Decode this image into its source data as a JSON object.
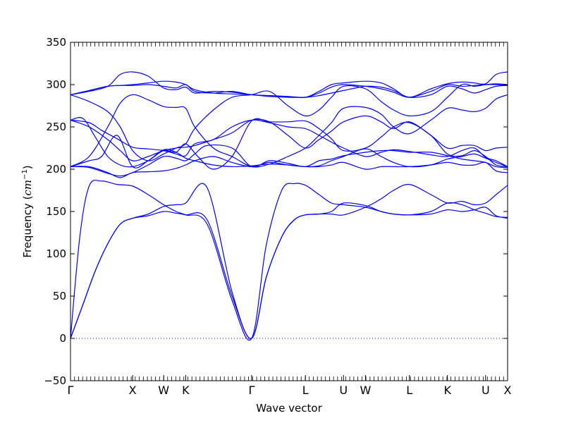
{
  "chart_data": {
    "type": "line",
    "title": "",
    "xlabel": "Wave vector",
    "ylabel_text": "Frequency (",
    "ylabel_unit_base": "cm",
    "ylabel_unit_exp": "−1",
    "ylabel_close": ")",
    "ylim": [
      -50,
      350
    ],
    "yticks": [
      -50,
      0,
      50,
      100,
      150,
      200,
      250,
      300,
      350
    ],
    "grid": false,
    "line_color": "#0000ff",
    "zero_line_style": "dotted",
    "xticks": [
      {
        "label": "Γ",
        "pos": 0.0
      },
      {
        "label": "X",
        "pos": 1.0
      },
      {
        "label": "W",
        "pos": 1.5
      },
      {
        "label": "K",
        "pos": 1.854
      },
      {
        "label": "Γ",
        "pos": 2.915
      },
      {
        "label": "L",
        "pos": 3.781
      },
      {
        "label": "U",
        "pos": 4.394
      },
      {
        "label": "W",
        "pos": 4.748
      },
      {
        "label": "L",
        "pos": 5.455
      },
      {
        "label": "K",
        "pos": 6.067
      },
      {
        "label": "U",
        "pos": 6.681
      },
      {
        "label": "X",
        "pos": 7.035
      }
    ],
    "series": [
      {
        "x": [
          0,
          0.2,
          0.4,
          0.6,
          0.8,
          1.0,
          1.25,
          1.5,
          1.7,
          1.854,
          2.2,
          2.6,
          2.915,
          3.15,
          3.4,
          3.6,
          3.781,
          4.0,
          4.2,
          4.394,
          4.748,
          5.0,
          5.2,
          5.455,
          5.8,
          6.067,
          6.3,
          6.5,
          6.681,
          6.85,
          7.035
        ],
        "y": [
          0,
          40,
          80,
          112,
          135,
          142,
          147,
          156,
          158,
          160,
          178,
          55,
          0,
          72,
          120,
          140,
          146,
          147,
          150,
          160,
          157,
          150,
          147,
          146,
          147,
          152,
          150,
          152,
          155,
          145,
          142
        ]
      },
      {
        "x": [
          0,
          0.2,
          0.4,
          0.6,
          0.8,
          1.0,
          1.25,
          1.5,
          1.7,
          1.854,
          2.2,
          2.6,
          2.915,
          3.15,
          3.4,
          3.6,
          3.781,
          4.0,
          4.2,
          4.394,
          4.748,
          5.0,
          5.2,
          5.455,
          5.8,
          6.067,
          6.3,
          6.5,
          6.681,
          6.85,
          7.035
        ],
        "y": [
          0,
          40,
          80,
          112,
          135,
          142,
          145,
          150,
          148,
          146,
          140,
          50,
          0,
          72,
          120,
          140,
          146,
          147,
          147,
          146,
          155,
          165,
          175,
          182,
          170,
          160,
          162,
          158,
          160,
          170,
          181
        ]
      },
      {
        "x": [
          0,
          0.15,
          0.3,
          0.5,
          0.75,
          1.0,
          1.25,
          1.5,
          1.7,
          1.854,
          2.2,
          2.6,
          2.915,
          3.15,
          3.4,
          3.6,
          3.781,
          4.0,
          4.2,
          4.394,
          4.748,
          5.0,
          5.2,
          5.455,
          5.8,
          6.067,
          6.3,
          6.5,
          6.681,
          6.85,
          7.035
        ],
        "y": [
          0,
          120,
          180,
          186,
          182,
          180,
          170,
          158,
          150,
          146,
          135,
          45,
          0,
          110,
          175,
          183,
          181,
          170,
          160,
          158,
          155,
          150,
          147,
          146,
          150,
          160,
          158,
          152,
          148,
          144,
          143
        ]
      },
      {
        "x": [
          0,
          0.3,
          0.6,
          0.8,
          1.0,
          1.25,
          1.5,
          1.7,
          1.854,
          2.0,
          2.3,
          2.6,
          2.915,
          3.2,
          3.5,
          3.781,
          4.0,
          4.2,
          4.394,
          4.748,
          5.0,
          5.2,
          5.455,
          5.8,
          6.067,
          6.3,
          6.5,
          6.681,
          6.85,
          7.035
        ],
        "y": [
          203,
          203,
          196,
          190,
          196,
          197,
          198,
          201,
          205,
          210,
          215,
          208,
          203,
          208,
          205,
          203,
          203,
          205,
          208,
          200,
          203,
          203,
          203,
          205,
          208,
          205,
          205,
          208,
          198,
          196
        ]
      },
      {
        "x": [
          0,
          0.3,
          0.6,
          0.8,
          1.0,
          1.25,
          1.5,
          1.7,
          1.854,
          2.0,
          2.2,
          2.6,
          2.915,
          3.2,
          3.5,
          3.781,
          4.0,
          4.2,
          4.394,
          4.748,
          5.0,
          5.2,
          5.455,
          5.8,
          6.067,
          6.3,
          6.5,
          6.681,
          6.85,
          7.035
        ],
        "y": [
          203,
          202,
          195,
          192,
          196,
          205,
          215,
          213,
          210,
          218,
          228,
          225,
          203,
          210,
          207,
          203,
          210,
          212,
          216,
          220,
          222,
          222,
          220,
          220,
          216,
          212,
          210,
          208,
          203,
          202
        ]
      },
      {
        "x": [
          0,
          0.3,
          0.5,
          0.75,
          1.0,
          1.25,
          1.5,
          1.7,
          1.854,
          2.0,
          2.3,
          2.6,
          2.915,
          3.2,
          3.5,
          3.781,
          4.0,
          4.2,
          4.394,
          4.748,
          5.0,
          5.2,
          5.455,
          5.8,
          6.067,
          6.3,
          6.5,
          6.681,
          6.85,
          7.035
        ],
        "y": [
          203,
          210,
          215,
          240,
          203,
          210,
          223,
          220,
          213,
          210,
          205,
          203,
          204,
          206,
          205,
          203,
          204,
          210,
          215,
          224,
          215,
          208,
          203,
          205,
          212,
          215,
          218,
          213,
          208,
          203
        ]
      },
      {
        "x": [
          0,
          0.3,
          0.5,
          0.75,
          1.0,
          1.25,
          1.5,
          1.7,
          1.854,
          2.0,
          2.3,
          2.6,
          2.915,
          3.2,
          3.5,
          3.781,
          4.0,
          4.2,
          4.394,
          4.748,
          5.0,
          5.2,
          5.455,
          5.8,
          6.067,
          6.3,
          6.5,
          6.681,
          6.85,
          7.035
        ],
        "y": [
          258,
          255,
          246,
          236,
          226,
          224,
          222,
          218,
          216,
          230,
          235,
          250,
          258,
          255,
          250,
          248,
          240,
          232,
          225,
          215,
          220,
          223,
          221,
          217,
          215,
          222,
          225,
          214,
          210,
          203
        ]
      },
      {
        "x": [
          0,
          0.3,
          0.6,
          0.8,
          1.0,
          1.25,
          1.5,
          1.7,
          1.854,
          2.0,
          2.3,
          2.6,
          2.915,
          3.2,
          3.5,
          3.781,
          4.0,
          4.2,
          4.394,
          4.748,
          5.0,
          5.2,
          5.455,
          5.8,
          6.067,
          6.3,
          6.5,
          6.681,
          6.85,
          7.035
        ],
        "y": [
          258,
          250,
          235,
          222,
          210,
          215,
          222,
          225,
          226,
          228,
          235,
          243,
          258,
          256,
          240,
          225,
          235,
          245,
          256,
          263,
          256,
          248,
          256,
          240,
          225,
          228,
          228,
          222,
          225,
          226
        ]
      },
      {
        "x": [
          0,
          0.2,
          0.4,
          0.6,
          0.8,
          1.0,
          1.25,
          1.5,
          1.7,
          1.854,
          2.05,
          2.3,
          2.6,
          2.915,
          3.2,
          3.5,
          3.781,
          4.0,
          4.2,
          4.394,
          4.748,
          5.0,
          5.2,
          5.455,
          5.8,
          6.067,
          6.3,
          6.5,
          6.681,
          6.85,
          7.035
        ],
        "y": [
          258,
          260,
          238,
          215,
          205,
          203,
          210,
          222,
          220,
          230,
          215,
          200,
          215,
          257,
          256,
          256,
          257,
          248,
          236,
          222,
          225,
          238,
          250,
          255,
          240,
          218,
          216,
          222,
          215,
          205,
          203
        ]
      },
      {
        "x": [
          0,
          0.3,
          0.6,
          0.8,
          1.0,
          1.25,
          1.5,
          1.7,
          1.854,
          2.0,
          2.3,
          2.6,
          2.915,
          3.2,
          3.5,
          3.781,
          4.0,
          4.2,
          4.394,
          4.748,
          5.0,
          5.2,
          5.455,
          5.8,
          6.067,
          6.3,
          6.5,
          6.681,
          6.85,
          7.035
        ],
        "y": [
          203,
          215,
          250,
          278,
          288,
          282,
          274,
          273,
          272,
          250,
          225,
          215,
          203,
          206,
          215,
          225,
          240,
          255,
          272,
          273,
          265,
          250,
          242,
          258,
          272,
          270,
          268,
          272,
          283,
          288
        ]
      },
      {
        "x": [
          0,
          0.3,
          0.6,
          0.8,
          1.0,
          1.25,
          1.5,
          1.7,
          1.854,
          2.0,
          2.3,
          2.6,
          2.915,
          3.2,
          3.5,
          3.781,
          4.0,
          4.2,
          4.394,
          4.748,
          5.0,
          5.2,
          5.455,
          5.8,
          6.067,
          6.3,
          6.5,
          6.681,
          6.85,
          7.035
        ],
        "y": [
          288,
          280,
          268,
          250,
          222,
          210,
          218,
          225,
          230,
          248,
          270,
          285,
          288,
          292,
          275,
          263,
          270,
          285,
          298,
          295,
          280,
          270,
          263,
          268,
          285,
          300,
          298,
          300,
          301,
          300
        ]
      },
      {
        "x": [
          0,
          0.3,
          0.6,
          0.8,
          1.0,
          1.25,
          1.5,
          1.7,
          1.854,
          2.0,
          2.3,
          2.6,
          2.915,
          3.2,
          3.5,
          3.781,
          4.0,
          4.2,
          4.394,
          4.748,
          5.0,
          5.2,
          5.455,
          5.8,
          6.067,
          6.3,
          6.5,
          6.681,
          6.85,
          7.035
        ],
        "y": [
          288,
          293,
          298,
          299,
          299,
          300,
          298,
          296,
          300,
          292,
          290,
          292,
          288,
          287,
          286,
          285,
          290,
          297,
          300,
          298,
          295,
          291,
          285,
          292,
          300,
          298,
          299,
          300,
          300,
          299
        ]
      },
      {
        "x": [
          0,
          0.3,
          0.6,
          0.8,
          1.0,
          1.25,
          1.5,
          1.7,
          1.854,
          2.0,
          2.3,
          2.6,
          2.915,
          3.2,
          3.5,
          3.781,
          4.0,
          4.2,
          4.394,
          4.748,
          5.0,
          5.2,
          5.455,
          5.8,
          6.067,
          6.3,
          6.5,
          6.681,
          6.85,
          7.035
        ],
        "y": [
          288,
          292,
          298,
          312,
          315,
          310,
          296,
          294,
          297,
          290,
          292,
          291,
          288,
          287,
          286,
          285,
          292,
          300,
          302,
          304,
          302,
          295,
          285,
          295,
          301,
          303,
          302,
          301,
          312,
          315
        ]
      },
      {
        "x": [
          0,
          0.3,
          0.6,
          0.8,
          1.0,
          1.25,
          1.5,
          1.7,
          1.854,
          2.0,
          2.3,
          2.6,
          2.915,
          3.2,
          3.5,
          3.781,
          4.0,
          4.2,
          4.394,
          4.748,
          5.0,
          5.2,
          5.455,
          5.8,
          6.067,
          6.3,
          6.5,
          6.681,
          6.85,
          7.035
        ],
        "y": [
          288,
          293,
          298,
          299,
          300,
          302,
          304,
          303,
          300,
          294,
          290,
          289,
          288,
          286,
          285,
          285,
          287,
          290,
          293,
          298,
          297,
          293,
          285,
          288,
          298,
          295,
          290,
          294,
          298,
          299
        ]
      }
    ]
  }
}
